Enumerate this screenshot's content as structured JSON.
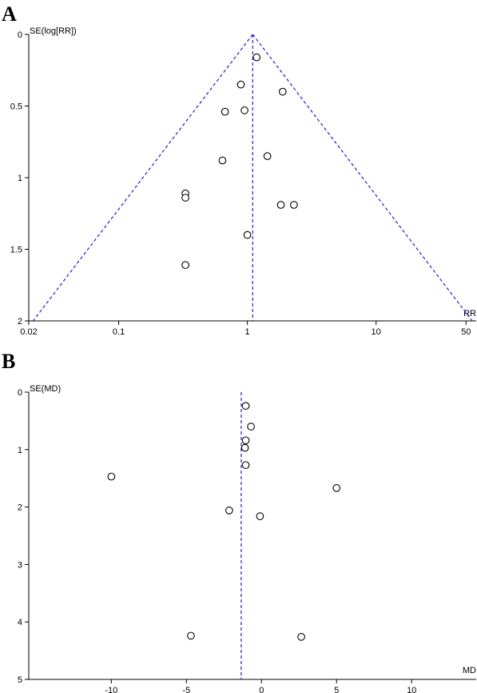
{
  "chart_data": [
    {
      "panel": "A",
      "type": "scatter",
      "x_scale": "log",
      "xlabel": "RR",
      "ylabel": "SE(log[RR])",
      "xlim": [
        0.02,
        60
      ],
      "ylim": [
        0,
        2
      ],
      "y_reversed": true,
      "x_ticks": [
        0.02,
        0.1,
        1,
        10,
        50
      ],
      "x_tick_labels": [
        "0.02",
        "0.1",
        "1",
        "10",
        "50"
      ],
      "y_ticks": [
        0,
        0.5,
        1,
        1.5,
        2
      ],
      "y_tick_labels": [
        "0",
        "0.5",
        "1",
        "1.5",
        "2"
      ],
      "pooled_estimate": 1.1,
      "funnel": {
        "apex_se": 0,
        "base_se": 2,
        "base_x": [
          0.0216,
          55.9
        ]
      },
      "grid": false,
      "points": [
        {
          "x": 1.18,
          "y": 0.16
        },
        {
          "x": 0.89,
          "y": 0.35
        },
        {
          "x": 1.88,
          "y": 0.4
        },
        {
          "x": 0.67,
          "y": 0.54
        },
        {
          "x": 0.95,
          "y": 0.53
        },
        {
          "x": 1.43,
          "y": 0.85
        },
        {
          "x": 0.64,
          "y": 0.88
        },
        {
          "x": 0.33,
          "y": 1.11
        },
        {
          "x": 0.33,
          "y": 1.14
        },
        {
          "x": 1.82,
          "y": 1.19
        },
        {
          "x": 2.3,
          "y": 1.19
        },
        {
          "x": 1.0,
          "y": 1.4
        },
        {
          "x": 0.33,
          "y": 1.61
        }
      ]
    },
    {
      "panel": "B",
      "type": "scatter",
      "x_scale": "linear",
      "xlabel": "MD",
      "ylabel": "SE(MD)",
      "xlim": [
        -15.5,
        14.3
      ],
      "ylim": [
        0,
        5
      ],
      "y_reversed": true,
      "x_ticks": [
        -10,
        -5,
        0,
        5,
        10
      ],
      "x_tick_labels": [
        "-10",
        "-5",
        "0",
        "5",
        "10"
      ],
      "y_ticks": [
        0,
        1,
        2,
        3,
        4,
        5
      ],
      "y_tick_labels": [
        "0",
        "1",
        "2",
        "3",
        "4",
        "5"
      ],
      "pooled_estimate": -1.35,
      "grid": false,
      "points": [
        {
          "x": -1.05,
          "y": 0.24
        },
        {
          "x": -0.7,
          "y": 0.6
        },
        {
          "x": -1.05,
          "y": 0.84
        },
        {
          "x": -1.1,
          "y": 0.97
        },
        {
          "x": -1.05,
          "y": 1.27
        },
        {
          "x": -10.0,
          "y": 1.47
        },
        {
          "x": 5.0,
          "y": 1.67
        },
        {
          "x": -2.15,
          "y": 2.06
        },
        {
          "x": -0.1,
          "y": 2.16
        },
        {
          "x": -4.7,
          "y": 4.24
        },
        {
          "x": 2.65,
          "y": 4.26
        }
      ]
    }
  ]
}
